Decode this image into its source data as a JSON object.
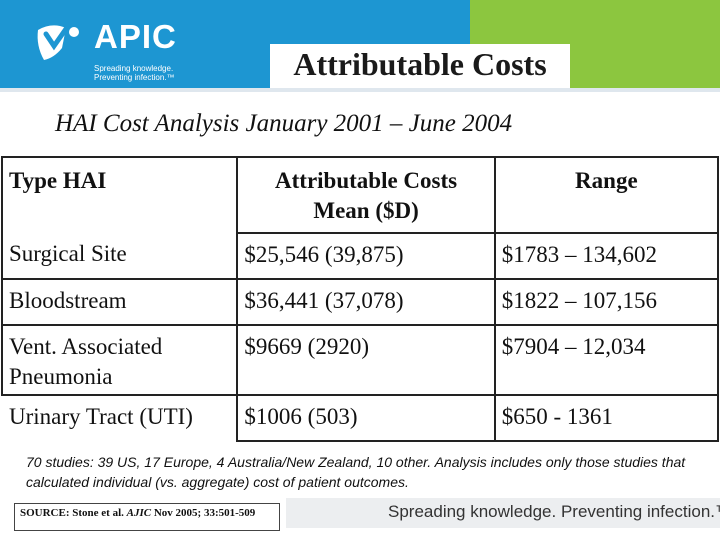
{
  "header": {
    "logo_word": "APIC",
    "tagline_line1": "Spreading knowledge.",
    "tagline_line2": "Preventing infection.™",
    "accent_blue": "#1d96d2",
    "accent_green": "#8cc63f"
  },
  "title": "Attributable Costs",
  "subtitle": "HAI Cost Analysis January 2001 – June 2004",
  "table": {
    "headers": {
      "type": "Type HAI",
      "costs_line1": "Attributable Costs",
      "costs_line2": "Mean ($D)",
      "range": "Range"
    },
    "rows": [
      {
        "type": "Surgical Site",
        "cost": "$25,546 (39,875)",
        "range": "$1783 – 134,602"
      },
      {
        "type": "Bloodstream",
        "cost": "$36,441 (37,078)",
        "range": "$1822 – 107,156"
      },
      {
        "type_line1": "Vent. Associated",
        "type_line2": "Pneumonia",
        "cost": "$9669 (2920)",
        "range": "$7904 – 12,034"
      },
      {
        "type": "Urinary Tract (UTI)",
        "cost": "$1006 (503)",
        "range": "$650 - 1361"
      }
    ]
  },
  "note": "70 studies: 39 US, 17 Europe, 4 Australia/New Zealand, 10 other.  Analysis includes only those studies that calculated individual (vs. aggregate) cost of patient outcomes.",
  "source": {
    "prefix": "SOURCE: Stone et al. ",
    "journal": "AJIC",
    "suffix": " Nov 2005; 33:501-509"
  },
  "footer": {
    "text": "Spreading knowledge. Preventing infection.™"
  }
}
